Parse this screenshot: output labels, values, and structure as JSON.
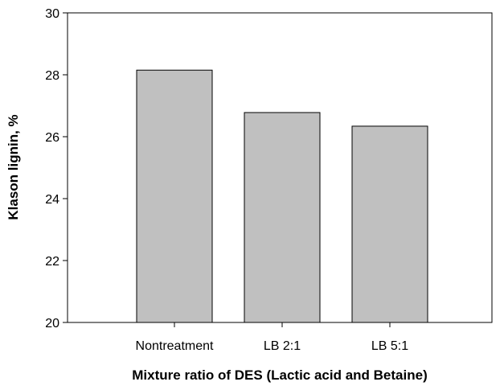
{
  "chart_data": {
    "type": "bar",
    "categories": [
      "Nontreatment",
      "LB 2:1",
      "LB 5:1"
    ],
    "values": [
      28.15,
      26.78,
      26.34
    ],
    "xlabel": "Mixture ratio of DES (Lactic acid and Betaine)",
    "ylabel": "Klason lignin, %",
    "ylim": [
      20,
      30
    ],
    "yticks": [
      20,
      22,
      24,
      26,
      28,
      30
    ],
    "grid": false,
    "bar_color": "#c0c0c0"
  }
}
